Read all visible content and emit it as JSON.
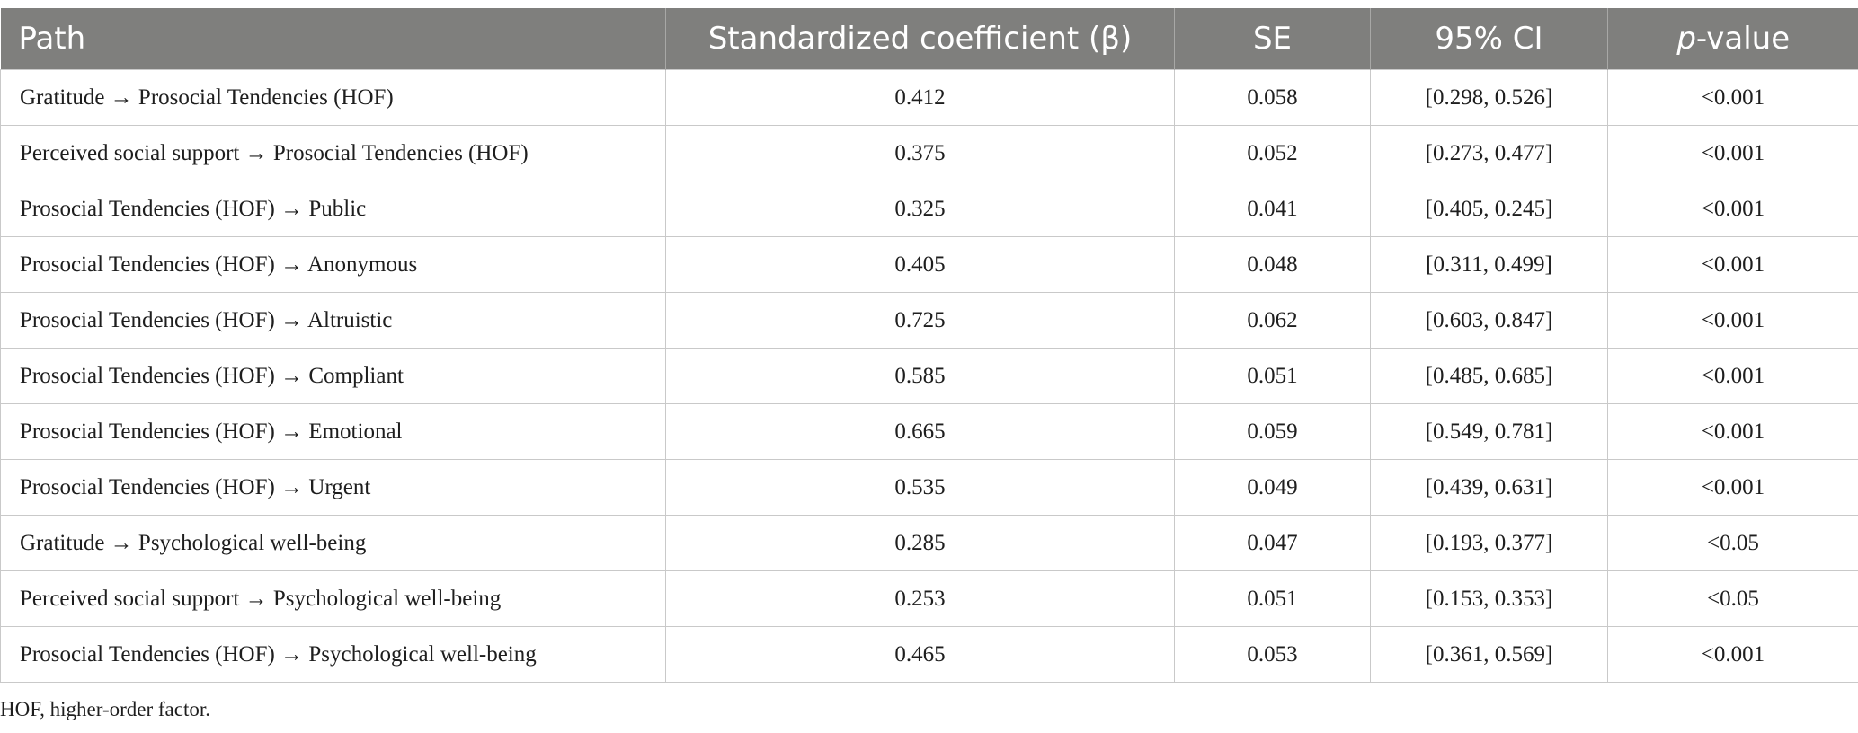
{
  "table": {
    "headers": {
      "path": "Path",
      "coef": "Standardized coefficient (β)",
      "se": "SE",
      "ci": "95% CI",
      "p_italic": "p",
      "p_rest": "-value"
    },
    "rows": [
      {
        "path": "Gratitude → Prosocial Tendencies (HOF)",
        "coef": "0.412",
        "se": "0.058",
        "ci": "[0.298, 0.526]",
        "p": "<0.001"
      },
      {
        "path": "Perceived social support → Prosocial Tendencies (HOF)",
        "coef": "0.375",
        "se": "0.052",
        "ci": "[0.273, 0.477]",
        "p": "<0.001"
      },
      {
        "path": "Prosocial Tendencies (HOF) → Public",
        "coef": "0.325",
        "se": "0.041",
        "ci": "[0.405, 0.245]",
        "p": "<0.001"
      },
      {
        "path": "Prosocial Tendencies (HOF) → Anonymous",
        "coef": "0.405",
        "se": "0.048",
        "ci": "[0.311, 0.499]",
        "p": "<0.001"
      },
      {
        "path": "Prosocial Tendencies (HOF) → Altruistic",
        "coef": "0.725",
        "se": "0.062",
        "ci": "[0.603, 0.847]",
        "p": "<0.001"
      },
      {
        "path": "Prosocial Tendencies (HOF) → Compliant",
        "coef": "0.585",
        "se": "0.051",
        "ci": "[0.485, 0.685]",
        "p": "<0.001"
      },
      {
        "path": "Prosocial Tendencies (HOF) → Emotional",
        "coef": "0.665",
        "se": "0.059",
        "ci": "[0.549, 0.781]",
        "p": "<0.001"
      },
      {
        "path": "Prosocial Tendencies (HOF) → Urgent",
        "coef": "0.535",
        "se": "0.049",
        "ci": "[0.439, 0.631]",
        "p": "<0.001"
      },
      {
        "path": "Gratitude → Psychological well-being",
        "coef": "0.285",
        "se": "0.047",
        "ci": "[0.193, 0.377]",
        "p": "<0.05"
      },
      {
        "path": "Perceived social support → Psychological well-being",
        "coef": "0.253",
        "se": "0.051",
        "ci": "[0.153, 0.353]",
        "p": "<0.05"
      },
      {
        "path": "Prosocial Tendencies (HOF) → Psychological well-being",
        "coef": "0.465",
        "se": "0.053",
        "ci": "[0.361, 0.569]",
        "p": "<0.001"
      }
    ]
  },
  "footnote": "HOF, higher-order factor.",
  "colors": {
    "header_bg": "#7f7f7d",
    "header_text": "#ffffff",
    "grid": "#c9c9c9",
    "body_text": "#1e1e1e"
  }
}
